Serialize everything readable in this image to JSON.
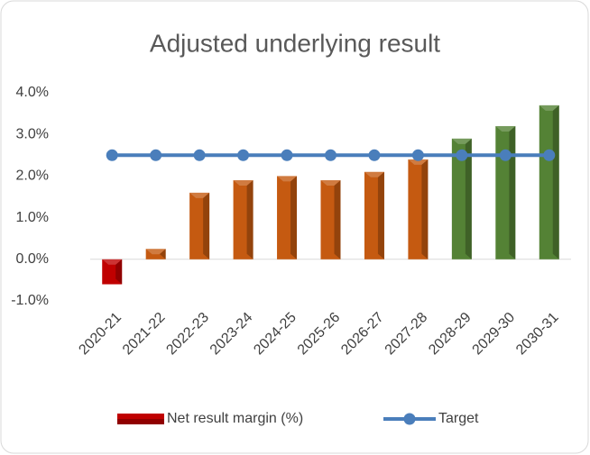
{
  "chart_data": {
    "type": "bar",
    "title": "Adjusted underlying result",
    "categories": [
      "2020-21",
      "2021-22",
      "2022-23",
      "2023-24",
      "2024-25",
      "2025-26",
      "2026-27",
      "2027-28",
      "2028-29",
      "2029-30",
      "2030-31"
    ],
    "series": [
      {
        "name": "Net result margin (%)",
        "type": "bar",
        "color": "#c00000",
        "colors": [
          "#c00000",
          "#c55a11",
          "#c55a11",
          "#c55a11",
          "#c55a11",
          "#c55a11",
          "#c55a11",
          "#c55a11",
          "#548235",
          "#548235",
          "#548235"
        ],
        "values": [
          -0.6,
          0.25,
          1.6,
          1.9,
          2.0,
          1.9,
          2.1,
          2.4,
          2.9,
          3.2,
          3.7
        ]
      },
      {
        "name": "Target",
        "type": "line",
        "color": "#4a7ebb",
        "values": [
          2.5,
          2.5,
          2.5,
          2.5,
          2.5,
          2.5,
          2.5,
          2.5,
          2.5,
          2.5,
          2.5
        ]
      }
    ],
    "ylim": [
      -1,
      4
    ],
    "yticks": [
      {
        "value": -1,
        "label": "-1.0%"
      },
      {
        "value": 0,
        "label": "0.0%"
      },
      {
        "value": 1,
        "label": "1.0%"
      },
      {
        "value": 2,
        "label": "2.0%"
      },
      {
        "value": 3,
        "label": "3.0%"
      },
      {
        "value": 4,
        "label": "4.0%"
      }
    ],
    "grid": false,
    "legend": "bottom"
  }
}
